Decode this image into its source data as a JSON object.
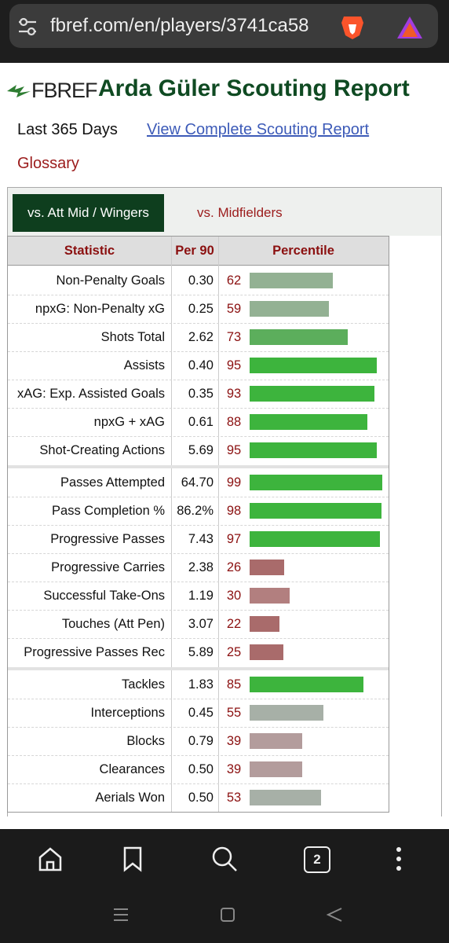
{
  "browser": {
    "url": "fbref.com/en/players/3741ca58",
    "tab_count": "2"
  },
  "header": {
    "logo": "FBREF",
    "title": "Arda Güler Scouting Report"
  },
  "period": "Last 365 Days",
  "link": "View Complete Scouting Report",
  "glossary": "Glossary",
  "tabs": [
    "vs. Att Mid / Wingers",
    "vs. Midfielders"
  ],
  "table": {
    "columns": [
      "Statistic",
      "Per 90",
      "Percentile"
    ],
    "groups": [
      [
        [
          "Non-Penalty Goals",
          "0.30",
          62
        ],
        [
          "npxG: Non-Penalty xG",
          "0.25",
          59
        ],
        [
          "Shots Total",
          "2.62",
          73
        ],
        [
          "Assists",
          "0.40",
          95
        ],
        [
          "xAG: Exp. Assisted Goals",
          "0.35",
          93
        ],
        [
          "npxG + xAG",
          "0.61",
          88
        ],
        [
          "Shot-Creating Actions",
          "5.69",
          95
        ]
      ],
      [
        [
          "Passes Attempted",
          "64.70",
          99
        ],
        [
          "Pass Completion %",
          "86.2%",
          98
        ],
        [
          "Progressive Passes",
          "7.43",
          97
        ],
        [
          "Progressive Carries",
          "2.38",
          26
        ],
        [
          "Successful Take-Ons",
          "1.19",
          30
        ],
        [
          "Touches (Att Pen)",
          "3.07",
          22
        ],
        [
          "Progressive Passes Rec",
          "5.89",
          25
        ]
      ],
      [
        [
          "Tackles",
          "1.83",
          85
        ],
        [
          "Interceptions",
          "0.45",
          55
        ],
        [
          "Blocks",
          "0.79",
          39
        ],
        [
          "Clearances",
          "0.50",
          39
        ],
        [
          "Aerials Won",
          "0.50",
          53
        ]
      ]
    ]
  }
}
